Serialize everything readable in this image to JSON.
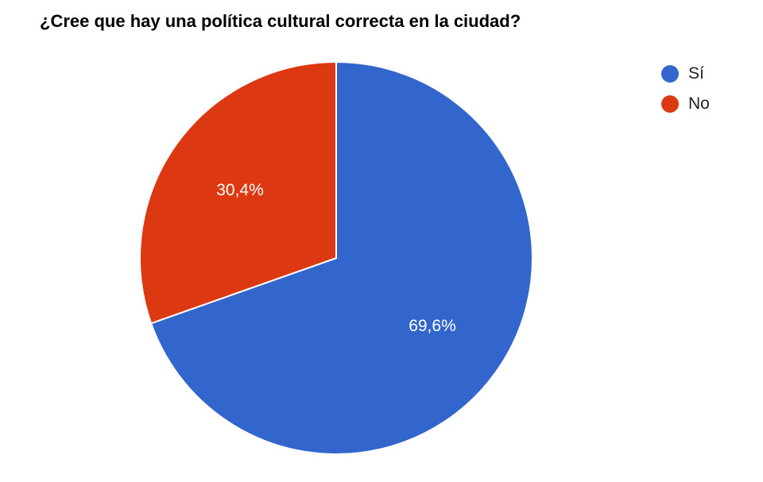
{
  "chart_data": {
    "type": "pie",
    "title": "¿Cree que hay una política cultural correcta en la ciudad?",
    "legend_position": "right",
    "slices": [
      {
        "label": "Sí",
        "value": 69.6,
        "display": "69,6%",
        "color": "#3366cc"
      },
      {
        "label": "No",
        "value": 30.4,
        "display": "30,4%",
        "color": "#dc3912"
      }
    ]
  }
}
